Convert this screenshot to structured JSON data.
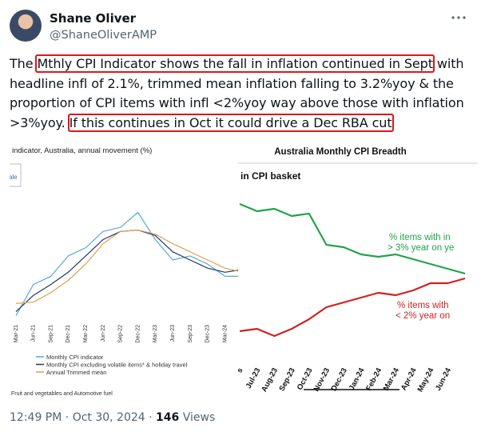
{
  "author": {
    "name": "Shane Oliver",
    "handle": "@ShaneOliverAMP"
  },
  "tweet": {
    "segments": [
      "The ",
      "Mthly CPI Indicator shows the fall in inflation continued in Sept",
      " with headline infl of 2.1%, trimmed mean inflation falling to 3.2%yoy & the proportion of CPI items with infl <2%yoy way above those with inflation >3%yoy. ",
      "If this continues in Oct it could drive a Dec RBA cut"
    ],
    "highlighted": [
      1,
      3
    ],
    "highlight_color": "#e0151b"
  },
  "images": [
    {
      "type": "line",
      "title": "indicator, Australia, annual movement (%)",
      "tab_label": "ale",
      "categories": [
        "Mar-21",
        "Jun-21",
        "Sep-21",
        "Dec-21",
        "Mar-22",
        "Jun-22",
        "Sep-22",
        "Dec-22",
        "Mar-23",
        "Jun-23",
        "Sep-23",
        "Dec-23",
        "Mar-24",
        null
      ],
      "ylim": [
        0,
        10
      ],
      "series": [
        {
          "name": "Monthly CPI indicator",
          "color": "#5aa9d6",
          "values": [
            0.9,
            3.2,
            3.8,
            5.3,
            5.9,
            7.1,
            7.4,
            8.5,
            6.5,
            5.0,
            5.3,
            4.7,
            3.8,
            3.8
          ]
        },
        {
          "name": "Monthly CPI excluding volatile items* & holiday travel",
          "color": "#1f3864",
          "values": [
            1.2,
            2.4,
            3.2,
            4.1,
            5.3,
            6.5,
            7.1,
            7.2,
            6.8,
            5.6,
            5.0,
            4.4,
            4.1,
            4.3
          ]
        },
        {
          "name": "Annual Trimmed mean",
          "color": "#e0a050",
          "values": [
            1.8,
            1.9,
            2.6,
            3.5,
            4.7,
            6.2,
            7.1,
            7.2,
            6.9,
            6.2,
            5.6,
            5.0,
            4.4,
            4.1
          ]
        }
      ],
      "footnote": "Fruit and vegetables and Automotive fuel"
    },
    {
      "type": "line",
      "title": "Australia Monthly CPI Breadth",
      "subtitle": "in CPI basket",
      "categories": [
        "s",
        "Jul-23",
        "Aug-23",
        "Sep-23",
        "Oct-23",
        "Nov-23",
        "Dec-23",
        "Jan-24",
        "Feb-24",
        "Mar-24",
        "Apr-24",
        "May-24",
        "Jun-24",
        null
      ],
      "ylim": [
        0,
        100
      ],
      "series": [
        {
          "name": [
            "% items with in",
            "> 3% year on ye"
          ],
          "color": "#22a34a",
          "values": [
            65,
            62,
            63,
            60,
            61,
            48,
            47,
            44,
            43,
            44,
            42,
            40,
            38,
            36
          ]
        },
        {
          "name": [
            "% items with",
            "< 2% year on"
          ],
          "color": "#d42020",
          "values": [
            12,
            13,
            10,
            13,
            17,
            22,
            24,
            26,
            28,
            27,
            29,
            32,
            32,
            34
          ]
        }
      ]
    }
  ],
  "footer": {
    "time": "12:49 PM",
    "separator": "·",
    "date": "Oct 30, 2024",
    "views": 146,
    "views_label": "Views"
  }
}
